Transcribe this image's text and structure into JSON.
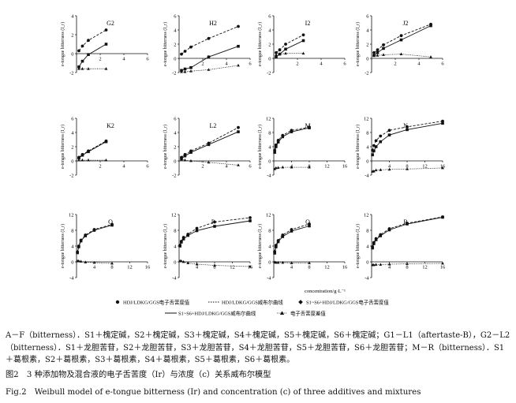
{
  "figure": {
    "ylabel": "e-tongue bitterness (I_r)",
    "xlabel": "concentration/g·L⁻¹",
    "legend": {
      "hdj_value": "HDJ/LDKG/GGS电子舌苦度值",
      "hdj_curve": "HDJ/LDKG/GGS威布尔曲线",
      "s1_value": "S1~S6+HDJ/LDKG/GGS电子舌苦度值",
      "s1_curve": "S1~S6+HDJ/LDKG/GGS威布尔曲线",
      "diff": "电子舌苦度差值"
    }
  },
  "chart_data": [
    {
      "type": "line",
      "panel": "G2",
      "xlim": [
        0,
        6
      ],
      "ylim": [
        -2,
        4
      ],
      "xticks": [
        0,
        2,
        4,
        6
      ],
      "yticks": [
        -2,
        0,
        2,
        4
      ],
      "series": [
        {
          "role": "hdj",
          "x": [
            0.2,
            0.5,
            1.0,
            2.5
          ],
          "y": [
            0.3,
            0.8,
            1.4,
            2.5
          ]
        },
        {
          "role": "mix",
          "x": [
            0.2,
            0.5,
            1.0,
            2.5
          ],
          "y": [
            -1.4,
            -0.8,
            -0.1,
            1.0
          ]
        },
        {
          "role": "diff",
          "x": [
            0.2,
            0.5,
            1.0,
            2.5
          ],
          "y": [
            -1.6,
            -1.6,
            -1.6,
            -1.6
          ]
        }
      ]
    },
    {
      "type": "line",
      "panel": "H2",
      "xlim": [
        0,
        6
      ],
      "ylim": [
        -2,
        6
      ],
      "xticks": [
        0,
        2,
        4,
        6
      ],
      "yticks": [
        -2,
        0,
        2,
        4,
        6
      ],
      "series": [
        {
          "role": "hdj",
          "x": [
            0.2,
            0.5,
            1.0,
            2.5,
            5.0
          ],
          "y": [
            0.6,
            1.0,
            1.6,
            2.8,
            4.5
          ]
        },
        {
          "role": "mix",
          "x": [
            0.2,
            0.5,
            1.0,
            2.5,
            5.0
          ],
          "y": [
            -1.7,
            -1.5,
            -1.3,
            0.2,
            1.7
          ]
        },
        {
          "role": "diff",
          "x": [
            0.2,
            0.5,
            1.0,
            2.5,
            5.0
          ],
          "y": [
            -1.9,
            -1.9,
            -1.8,
            -1.6,
            -1.0
          ]
        }
      ]
    },
    {
      "type": "line",
      "panel": "I2",
      "xlim": [
        0,
        6
      ],
      "ylim": [
        -2,
        6
      ],
      "xticks": [
        0,
        2,
        4,
        6
      ],
      "yticks": [
        -2,
        0,
        2,
        4,
        6
      ],
      "series": [
        {
          "role": "hdj",
          "x": [
            0.2,
            0.5,
            1.0,
            2.5
          ],
          "y": [
            0.8,
            1.2,
            2.0,
            3.3
          ]
        },
        {
          "role": "mix",
          "x": [
            0.2,
            0.5,
            1.0,
            2.5
          ],
          "y": [
            0.2,
            0.6,
            1.3,
            2.5
          ]
        },
        {
          "role": "diff",
          "x": [
            0.2,
            0.5,
            1.0,
            2.5
          ],
          "y": [
            0.5,
            0.6,
            0.7,
            0.7
          ]
        }
      ]
    },
    {
      "type": "line",
      "panel": "J2",
      "xlim": [
        0,
        6
      ],
      "ylim": [
        -2,
        6
      ],
      "xticks": [
        0,
        2,
        4,
        6
      ],
      "yticks": [
        -2,
        0,
        2,
        4,
        6
      ],
      "series": [
        {
          "role": "hdj",
          "x": [
            0.2,
            0.5,
            1.0,
            2.5,
            5.0
          ],
          "y": [
            0.8,
            1.2,
            1.9,
            3.2,
            4.8
          ]
        },
        {
          "role": "mix",
          "x": [
            0.2,
            0.5,
            1.0,
            2.5,
            5.0
          ],
          "y": [
            0.4,
            0.8,
            1.4,
            2.6,
            4.6
          ]
        },
        {
          "role": "diff",
          "x": [
            0.2,
            0.5,
            1.0,
            2.5,
            5.0
          ],
          "y": [
            0.4,
            0.4,
            0.5,
            0.6,
            0.2
          ]
        }
      ]
    },
    {
      "type": "line",
      "panel": "K2",
      "xlim": [
        0,
        6
      ],
      "ylim": [
        -2,
        6
      ],
      "xticks": [
        0,
        2,
        4,
        6
      ],
      "yticks": [
        -2,
        0,
        2,
        4,
        6
      ],
      "series": [
        {
          "role": "hdj",
          "x": [
            0.2,
            0.5,
            1.0,
            2.5
          ],
          "y": [
            0.5,
            0.9,
            1.4,
            2.8
          ]
        },
        {
          "role": "mix",
          "x": [
            0.2,
            0.5,
            1.0,
            2.5
          ],
          "y": [
            0.4,
            0.8,
            1.3,
            2.7
          ]
        },
        {
          "role": "diff",
          "x": [
            0.2,
            0.5,
            1.0,
            2.5
          ],
          "y": [
            0.1,
            0.1,
            0.1,
            0.1
          ]
        }
      ]
    },
    {
      "type": "line",
      "panel": "L2",
      "xlim": [
        0,
        6
      ],
      "ylim": [
        -2,
        6
      ],
      "xticks": [
        0,
        2,
        4,
        6
      ],
      "yticks": [
        -2,
        0,
        2,
        4,
        6
      ],
      "series": [
        {
          "role": "hdj",
          "x": [
            0.2,
            0.5,
            1.0,
            2.5,
            5.0
          ],
          "y": [
            0.5,
            0.9,
            1.4,
            2.5,
            4.7
          ]
        },
        {
          "role": "mix",
          "x": [
            0.2,
            0.5,
            1.0,
            2.5,
            5.0
          ],
          "y": [
            0.3,
            0.7,
            1.2,
            2.3,
            4.1
          ]
        },
        {
          "role": "diff",
          "x": [
            0.2,
            0.5,
            1.0,
            2.5,
            5.0
          ],
          "y": [
            0.2,
            0.1,
            0.0,
            -0.2,
            -0.6
          ]
        }
      ]
    },
    {
      "type": "line",
      "panel": "M",
      "xlim": [
        0,
        16
      ],
      "ylim": [
        -4,
        12
      ],
      "xticks": [
        0,
        4,
        8,
        12,
        16
      ],
      "yticks": [
        -4,
        0,
        4,
        8,
        12
      ],
      "series": [
        {
          "role": "hdj",
          "x": [
            0.2,
            0.5,
            1.0,
            2.0,
            4.0,
            8.0
          ],
          "y": [
            3.0,
            4.5,
            5.8,
            7.2,
            8.6,
            9.5
          ]
        },
        {
          "role": "mix",
          "x": [
            0.2,
            0.5,
            1.0,
            2.0,
            4.0,
            8.0
          ],
          "y": [
            2.4,
            4.0,
            5.3,
            6.8,
            8.2,
            9.3
          ]
        },
        {
          "role": "diff",
          "x": [
            0.2,
            0.5,
            1.0,
            2.0,
            4.0,
            8.0
          ],
          "y": [
            -2.3,
            -2.0,
            -1.9,
            -1.8,
            -1.8,
            -1.8
          ]
        }
      ]
    },
    {
      "type": "line",
      "panel": "N",
      "xlim": [
        0,
        16
      ],
      "ylim": [
        -4,
        12
      ],
      "xticks": [
        0,
        4,
        8,
        12,
        16
      ],
      "yticks": [
        -4,
        0,
        4,
        8,
        12
      ],
      "series": [
        {
          "role": "hdj",
          "x": [
            0.2,
            0.5,
            1.0,
            2.0,
            4.0,
            8.0,
            16.0
          ],
          "y": [
            3.0,
            4.3,
            5.7,
            7.0,
            8.6,
            9.6,
            11.2
          ]
        },
        {
          "role": "mix",
          "x": [
            0.2,
            0.5,
            1.0,
            2.0,
            4.0,
            8.0,
            16.0
          ],
          "y": [
            1.7,
            2.8,
            4.0,
            5.4,
            7.3,
            8.8,
            10.6
          ]
        },
        {
          "role": "diff",
          "x": [
            0.2,
            0.5,
            1.0,
            2.0,
            4.0,
            8.0,
            16.0
          ],
          "y": [
            -3.0,
            -2.9,
            -2.6,
            -2.5,
            -2.4,
            -2.3,
            -2.0
          ]
        }
      ]
    },
    {
      "type": "line",
      "panel": "O",
      "xlim": [
        0,
        16
      ],
      "ylim": [
        -4,
        12
      ],
      "xticks": [
        0,
        4,
        8,
        12,
        16
      ],
      "yticks": [
        -4,
        0,
        4,
        8,
        12
      ],
      "series": [
        {
          "role": "hdj",
          "x": [
            0.2,
            0.5,
            1.0,
            2.0,
            4.0,
            8.0
          ],
          "y": [
            2.5,
            4.0,
            5.5,
            6.8,
            8.2,
            9.5
          ]
        },
        {
          "role": "mix",
          "x": [
            0.2,
            0.5,
            1.0,
            2.0,
            4.0,
            8.0
          ],
          "y": [
            2.3,
            3.8,
            5.3,
            6.6,
            8.0,
            9.3
          ]
        },
        {
          "role": "diff",
          "x": [
            0.2,
            0.5,
            1.0,
            2.0,
            4.0,
            8.0
          ],
          "y": [
            0.2,
            0.2,
            0.1,
            -0.1,
            -0.2,
            -0.4
          ]
        }
      ]
    },
    {
      "type": "line",
      "panel": "P",
      "xlim": [
        0,
        16
      ],
      "ylim": [
        -4,
        12
      ],
      "xticks": [
        0,
        4,
        8,
        12,
        16
      ],
      "yticks": [
        -4,
        0,
        4,
        8,
        12
      ],
      "series": [
        {
          "role": "hdj",
          "x": [
            0.2,
            0.5,
            1.0,
            2.0,
            4.0,
            8.0,
            16.0
          ],
          "y": [
            4.2,
            5.2,
            6.2,
            7.0,
            8.5,
            10.1,
            11.2
          ]
        },
        {
          "role": "mix",
          "x": [
            0.2,
            0.5,
            1.0,
            2.0,
            4.0,
            8.0,
            16.0
          ],
          "y": [
            4.0,
            5.0,
            5.8,
            6.7,
            7.9,
            9.0,
            10.4
          ]
        },
        {
          "role": "diff",
          "x": [
            0.2,
            0.5,
            1.0,
            2.0,
            4.0,
            8.0,
            16.0
          ],
          "y": [
            0.2,
            0.2,
            0.0,
            -0.3,
            -0.6,
            -0.9,
            -1.2
          ]
        }
      ]
    },
    {
      "type": "line",
      "panel": "Q",
      "xlim": [
        0,
        16
      ],
      "ylim": [
        -4,
        12
      ],
      "xticks": [
        0,
        4,
        8,
        12,
        16
      ],
      "yticks": [
        -4,
        0,
        4,
        8,
        12
      ],
      "series": [
        {
          "role": "hdj",
          "x": [
            0.2,
            0.5,
            1.0,
            2.0,
            4.0,
            8.0
          ],
          "y": [
            2.6,
            4.2,
            5.4,
            6.8,
            8.2,
            9.6
          ]
        },
        {
          "role": "mix",
          "x": [
            0.2,
            0.5,
            1.0,
            2.0,
            4.0,
            8.0
          ],
          "y": [
            2.2,
            3.8,
            5.1,
            6.4,
            7.8,
            9.1
          ]
        },
        {
          "role": "diff",
          "x": [
            0.2,
            0.5,
            1.0,
            2.0,
            4.0,
            8.0
          ],
          "y": [
            -0.1,
            -0.2,
            -0.2,
            -0.2,
            -0.3,
            -0.3
          ]
        }
      ]
    },
    {
      "type": "line",
      "panel": "R",
      "xlim": [
        0,
        16
      ],
      "ylim": [
        -4,
        12
      ],
      "xticks": [
        0,
        4,
        8,
        12,
        16
      ],
      "yticks": [
        -4,
        0,
        4,
        8,
        12
      ],
      "series": [
        {
          "role": "hdj",
          "x": [
            0.2,
            0.5,
            1.0,
            2.0,
            4.0,
            8.0,
            16.0
          ],
          "y": [
            3.8,
            4.9,
            5.9,
            6.9,
            8.4,
            9.8,
            11.4
          ]
        },
        {
          "role": "mix",
          "x": [
            0.2,
            0.5,
            1.0,
            2.0,
            4.0,
            8.0,
            16.0
          ],
          "y": [
            3.5,
            4.6,
            5.6,
            6.6,
            8.1,
            9.6,
            11.3
          ]
        },
        {
          "role": "diff",
          "x": [
            0.2,
            0.5,
            1.0,
            2.0,
            4.0,
            8.0,
            16.0
          ],
          "y": [
            -0.8,
            -0.8,
            -0.7,
            -0.7,
            -0.6,
            -0.5,
            -0.4
          ]
        }
      ]
    }
  ],
  "caption": {
    "note": "A－F（bitterness）．S1＋槐定碱，S2＋槐定碱，S3＋槐定碱，S4＋槐定碱，S5＋槐定碱，S6＋槐定碱；G1－L1（aftertaste-B），G2－L2（bitterness）．S1＋龙胆苦苷，S2＋龙胆苦苷，S3＋龙胆苦苷，S4＋龙胆苦苷，S5＋龙胆苦苷，S6＋龙胆苦苷；M－R（bitterness）．S1＋葛根素，S2＋葛根素，S3＋葛根素，S4＋葛根素，S5＋葛根素，S6＋葛根素。",
    "title_cn": "图2　3 种添加物及混合液的电子舌苦度（Ir）与浓度（c）关系威布尔模型",
    "title_en": "Fig.2　Weibull model of e-tongue bitterness (Ir) and concentration (c) of three additives and mixtures"
  }
}
